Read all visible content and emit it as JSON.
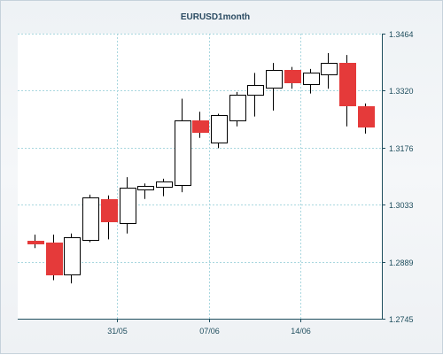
{
  "chart_data": {
    "type": "candlestick",
    "title": "EURUSD1month",
    "y_ticks": [
      "1.3464",
      "1.3320",
      "1.3176",
      "1.3033",
      "1.2889",
      "1.2745"
    ],
    "ylim": [
      1.2745,
      1.3464
    ],
    "x_ticks": [
      {
        "label": "31/05",
        "at_index": 4.5
      },
      {
        "label": "07/06",
        "at_index": 9.5
      },
      {
        "label": "14/06",
        "at_index": 14.5
      }
    ],
    "grid": true,
    "bull_color": "#ffffff",
    "bear_color": "#e53a3a",
    "axis_color": "#1f4e5e",
    "grid_color": "#a9d7df",
    "candles": [
      {
        "open": 1.2942,
        "high": 1.2957,
        "low": 1.2923,
        "close": 1.2935
      },
      {
        "open": 1.2937,
        "high": 1.2957,
        "low": 1.2842,
        "close": 1.2856
      },
      {
        "open": 1.2856,
        "high": 1.296,
        "low": 1.2834,
        "close": 1.295
      },
      {
        "open": 1.2942,
        "high": 1.3058,
        "low": 1.2938,
        "close": 1.305
      },
      {
        "open": 1.3046,
        "high": 1.3056,
        "low": 1.2945,
        "close": 1.299
      },
      {
        "open": 1.2986,
        "high": 1.3102,
        "low": 1.296,
        "close": 1.3076
      },
      {
        "open": 1.3072,
        "high": 1.3086,
        "low": 1.3047,
        "close": 1.308
      },
      {
        "open": 1.3076,
        "high": 1.3098,
        "low": 1.3054,
        "close": 1.309
      },
      {
        "open": 1.3081,
        "high": 1.33,
        "low": 1.3064,
        "close": 1.3245
      },
      {
        "open": 1.3245,
        "high": 1.3267,
        "low": 1.3201,
        "close": 1.3215
      },
      {
        "open": 1.3189,
        "high": 1.3262,
        "low": 1.3175,
        "close": 1.3258
      },
      {
        "open": 1.3245,
        "high": 1.3317,
        "low": 1.323,
        "close": 1.331
      },
      {
        "open": 1.331,
        "high": 1.3365,
        "low": 1.3255,
        "close": 1.3335
      },
      {
        "open": 1.3328,
        "high": 1.339,
        "low": 1.327,
        "close": 1.3372
      },
      {
        "open": 1.3372,
        "high": 1.338,
        "low": 1.3325,
        "close": 1.334
      },
      {
        "open": 1.3336,
        "high": 1.3375,
        "low": 1.3313,
        "close": 1.3365
      },
      {
        "open": 1.336,
        "high": 1.3415,
        "low": 1.3325,
        "close": 1.339
      },
      {
        "open": 1.339,
        "high": 1.341,
        "low": 1.323,
        "close": 1.3282
      },
      {
        "open": 1.3282,
        "high": 1.3288,
        "low": 1.3212,
        "close": 1.323
      }
    ]
  }
}
